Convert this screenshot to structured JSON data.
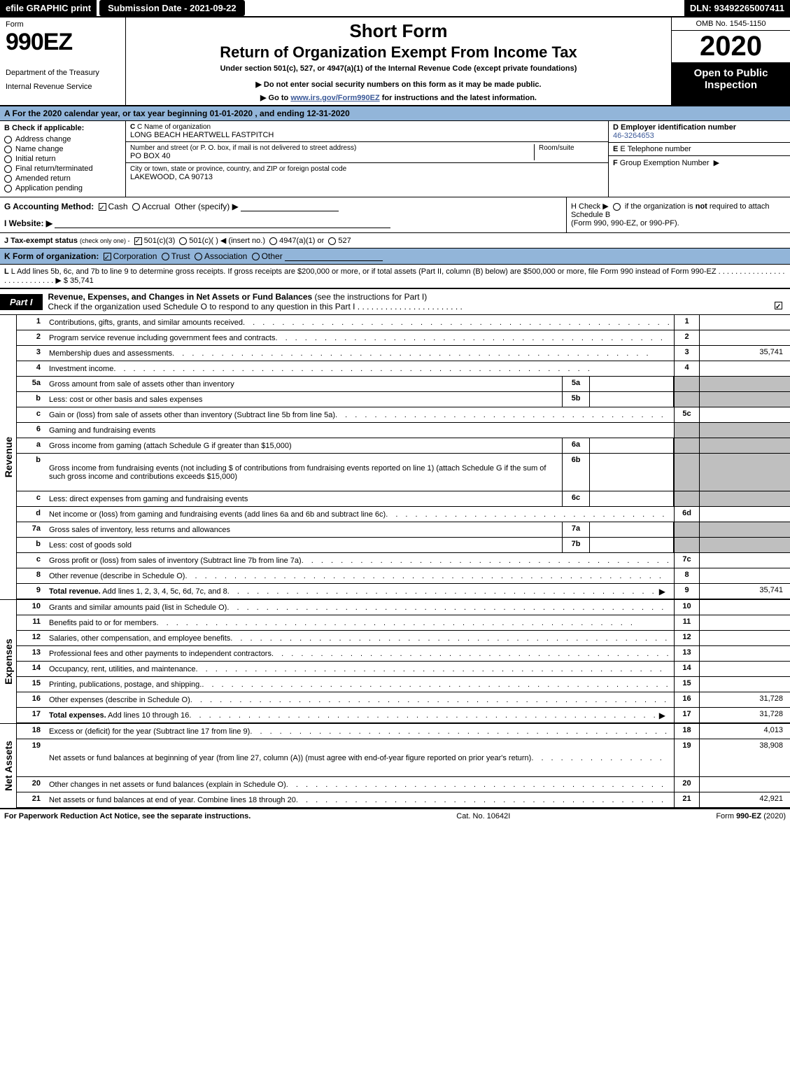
{
  "topbar": {
    "efile": "efile GRAPHIC print",
    "submission": "Submission Date - 2021-09-22",
    "dln": "DLN: 93492265007411"
  },
  "header": {
    "form_label": "Form",
    "form_number": "990EZ",
    "dept1": "Department of the Treasury",
    "dept2": "Internal Revenue Service",
    "short_form": "Short Form",
    "return_title": "Return of Organization Exempt From Income Tax",
    "under": "Under section 501(c), 527, or 4947(a)(1) of the Internal Revenue Code (except private foundations)",
    "notice1": "▶ Do not enter social security numbers on this form as it may be made public.",
    "notice2_pre": "▶ Go to ",
    "notice2_link": "www.irs.gov/Form990EZ",
    "notice2_post": " for instructions and the latest information.",
    "omb": "OMB No. 1545-1150",
    "year": "2020",
    "open": "Open to Public Inspection"
  },
  "calendar": "A  For the 2020 calendar year, or tax year beginning 01-01-2020 , and ending 12-31-2020",
  "section_b": {
    "title": "B  Check if applicable:",
    "items": [
      "Address change",
      "Name change",
      "Initial return",
      "Final return/terminated",
      "Amended return",
      "Application pending"
    ]
  },
  "section_c": {
    "name_label": "C Name of organization",
    "name": "LONG BEACH HEARTWELL FASTPITCH",
    "street_label": "Number and street (or P. O. box, if mail is not delivered to street address)",
    "room_label": "Room/suite",
    "street": "PO BOX 40",
    "city_label": "City or town, state or province, country, and ZIP or foreign postal code",
    "city": "LAKEWOOD, CA  90713"
  },
  "section_d": {
    "label": "D Employer identification number",
    "value": "46-3264653"
  },
  "section_e": {
    "label": "E Telephone number",
    "value": ""
  },
  "section_f": {
    "label": "F Group Exemption Number  ▶",
    "value": ""
  },
  "line_g": {
    "label": "G Accounting Method:",
    "cash": "Cash",
    "accrual": "Accrual",
    "other": "Other (specify) ▶"
  },
  "line_h": {
    "text1": "H  Check ▶",
    "text2": "if the organization is ",
    "not": "not",
    "text3": " required to attach Schedule B",
    "text4": "(Form 990, 990-EZ, or 990-PF)."
  },
  "line_i": {
    "label": "I Website: ▶",
    "value": ""
  },
  "line_j": {
    "label": "J Tax-exempt status",
    "sub": "(check only one) -",
    "opt1": "501(c)(3)",
    "opt2": "501(c)(   ) ◀ (insert no.)",
    "opt3": "4947(a)(1) or",
    "opt4": "527"
  },
  "line_k": {
    "label": "K Form of organization:",
    "opts": [
      "Corporation",
      "Trust",
      "Association",
      "Other"
    ]
  },
  "line_l": {
    "text": "L Add lines 5b, 6c, and 7b to line 9 to determine gross receipts. If gross receipts are $200,000 or more, or if total assets (Part II, column (B) below) are $500,000 or more, file Form 990 instead of Form 990-EZ",
    "dots": ". . . . . . . . . . . . . . . . . . . . . . . . . . . .  ▶",
    "value": "$ 35,741"
  },
  "part1": {
    "label": "Part I",
    "title": "Revenue, Expenses, and Changes in Net Assets or Fund Balances",
    "sub": "(see the instructions for Part I)",
    "check_line": "Check if the organization used Schedule O to respond to any question in this Part I",
    "check_dots": ". . . . . . . . . . . . . . . . . . . . . . ."
  },
  "sections": {
    "revenue": "Revenue",
    "expenses": "Expenses",
    "netassets": "Net Assets"
  },
  "rows": [
    {
      "n": "1",
      "desc": "Contributions, gifts, grants, and similar amounts received",
      "rn": "1",
      "rv": "",
      "sub": null
    },
    {
      "n": "2",
      "desc": "Program service revenue including government fees and contracts",
      "rn": "2",
      "rv": "",
      "sub": null
    },
    {
      "n": "3",
      "desc": "Membership dues and assessments",
      "rn": "3",
      "rv": "35,741",
      "sub": null
    },
    {
      "n": "4",
      "desc": "Investment income",
      "rn": "4",
      "rv": "",
      "sub": null
    },
    {
      "n": "5a",
      "desc": "Gross amount from sale of assets other than inventory",
      "rn": "",
      "rv": "",
      "sub": "5a",
      "shade": true
    },
    {
      "n": "b",
      "desc": "Less: cost or other basis and sales expenses",
      "rn": "",
      "rv": "",
      "sub": "5b",
      "shade": true
    },
    {
      "n": "c",
      "desc": "Gain or (loss) from sale of assets other than inventory (Subtract line 5b from line 5a)",
      "rn": "5c",
      "rv": "",
      "sub": null
    },
    {
      "n": "6",
      "desc": "Gaming and fundraising events",
      "rn": "",
      "rv": "",
      "sub": null,
      "shade": true,
      "noright": true
    },
    {
      "n": "a",
      "desc": "Gross income from gaming (attach Schedule G if greater than $15,000)",
      "rn": "",
      "rv": "",
      "sub": "6a",
      "shade": true
    },
    {
      "n": "b",
      "desc": "Gross income from fundraising events (not including $                                   of contributions from fundraising events reported on line 1) (attach Schedule G if the sum of such gross income and contributions exceeds $15,000)",
      "rn": "",
      "rv": "",
      "sub": "6b",
      "shade": true,
      "tall": true
    },
    {
      "n": "c",
      "desc": "Less: direct expenses from gaming and fundraising events",
      "rn": "",
      "rv": "",
      "sub": "6c",
      "shade": true
    },
    {
      "n": "d",
      "desc": "Net income or (loss) from gaming and fundraising events (add lines 6a and 6b and subtract line 6c)",
      "rn": "6d",
      "rv": "",
      "sub": null
    },
    {
      "n": "7a",
      "desc": "Gross sales of inventory, less returns and allowances",
      "rn": "",
      "rv": "",
      "sub": "7a",
      "shade": true
    },
    {
      "n": "b",
      "desc": "Less: cost of goods sold",
      "rn": "",
      "rv": "",
      "sub": "7b",
      "shade": true
    },
    {
      "n": "c",
      "desc": "Gross profit or (loss) from sales of inventory (Subtract line 7b from line 7a)",
      "rn": "7c",
      "rv": "",
      "sub": null
    },
    {
      "n": "8",
      "desc": "Other revenue (describe in Schedule O)",
      "rn": "8",
      "rv": "",
      "sub": null
    },
    {
      "n": "9",
      "desc": "Total revenue. Add lines 1, 2, 3, 4, 5c, 6d, 7c, and 8",
      "rn": "9",
      "rv": "35,741",
      "sub": null,
      "bold": true,
      "arrow": true
    }
  ],
  "exp_rows": [
    {
      "n": "10",
      "desc": "Grants and similar amounts paid (list in Schedule O)",
      "rn": "10",
      "rv": ""
    },
    {
      "n": "11",
      "desc": "Benefits paid to or for members",
      "rn": "11",
      "rv": ""
    },
    {
      "n": "12",
      "desc": "Salaries, other compensation, and employee benefits",
      "rn": "12",
      "rv": ""
    },
    {
      "n": "13",
      "desc": "Professional fees and other payments to independent contractors",
      "rn": "13",
      "rv": ""
    },
    {
      "n": "14",
      "desc": "Occupancy, rent, utilities, and maintenance",
      "rn": "14",
      "rv": ""
    },
    {
      "n": "15",
      "desc": "Printing, publications, postage, and shipping.",
      "rn": "15",
      "rv": ""
    },
    {
      "n": "16",
      "desc": "Other expenses (describe in Schedule O)",
      "rn": "16",
      "rv": "31,728"
    },
    {
      "n": "17",
      "desc": "Total expenses. Add lines 10 through 16",
      "rn": "17",
      "rv": "31,728",
      "bold": true,
      "arrow": true
    }
  ],
  "net_rows": [
    {
      "n": "18",
      "desc": "Excess or (deficit) for the year (Subtract line 17 from line 9)",
      "rn": "18",
      "rv": "4,013"
    },
    {
      "n": "19",
      "desc": "Net assets or fund balances at beginning of year (from line 27, column (A)) (must agree with end-of-year figure reported on prior year's return)",
      "rn": "19",
      "rv": "38,908",
      "tall": true,
      "shade_top": true
    },
    {
      "n": "20",
      "desc": "Other changes in net assets or fund balances (explain in Schedule O)",
      "rn": "20",
      "rv": ""
    },
    {
      "n": "21",
      "desc": "Net assets or fund balances at end of year. Combine lines 18 through 20",
      "rn": "21",
      "rv": "42,921"
    }
  ],
  "footer": {
    "left": "For Paperwork Reduction Act Notice, see the separate instructions.",
    "center": "Cat. No. 10642I",
    "right": "Form 990-EZ (2020)"
  },
  "dots": ". . . . . . . . . . . . . . . . . . . . . . . . . . . . . . . . . . . . . . . . . . . . . . . . ."
}
